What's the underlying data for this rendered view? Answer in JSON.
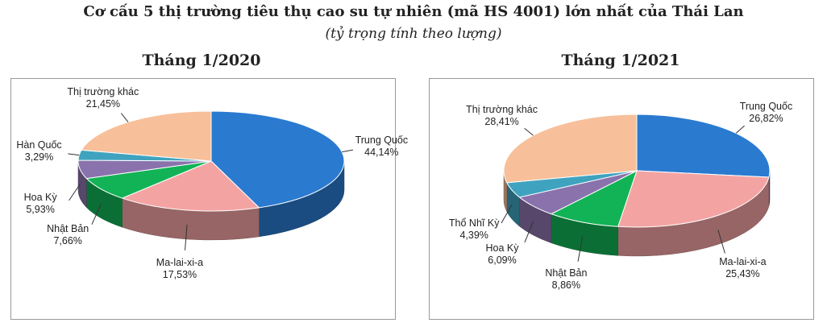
{
  "title": "Cơ cấu 5 thị trường tiêu thụ cao su tự nhiên (mã HS 4001) lớn nhất của Thái Lan",
  "subtitle": "(tỷ trọng tính theo lượng)",
  "chart_data": [
    {
      "type": "pie",
      "title": "Tháng 1/2020",
      "categories": [
        "Trung Quốc",
        "Ma-lai-xi-a",
        "Nhật Bản",
        "Hoa Kỳ",
        "Hàn Quốc",
        "Thị trường khác"
      ],
      "values": [
        44.14,
        17.53,
        7.66,
        5.93,
        3.29,
        21.45
      ],
      "value_labels": [
        "44,14%",
        "17,53%",
        "7,66%",
        "5,93%",
        "3,29%",
        "21,45%"
      ],
      "colors": [
        "#2a7ad0",
        "#f4a3a3",
        "#12b356",
        "#8a72ad",
        "#3fa3bf",
        "#f7c09a"
      ]
    },
    {
      "type": "pie",
      "title": "Tháng 1/2021",
      "categories": [
        "Trung Quốc",
        "Ma-lai-xi-a",
        "Nhật Bản",
        "Hoa Kỳ",
        "Thổ Nhĩ Kỳ",
        "Thị trường khác"
      ],
      "values": [
        26.82,
        25.43,
        8.86,
        6.09,
        4.39,
        28.41
      ],
      "value_labels": [
        "26,82%",
        "25,43%",
        "8,86%",
        "6,09%",
        "4,39%",
        "28,41%"
      ],
      "colors": [
        "#2a7ad0",
        "#f4a3a3",
        "#12b356",
        "#8a72ad",
        "#3fa3bf",
        "#f7c09a"
      ]
    }
  ]
}
